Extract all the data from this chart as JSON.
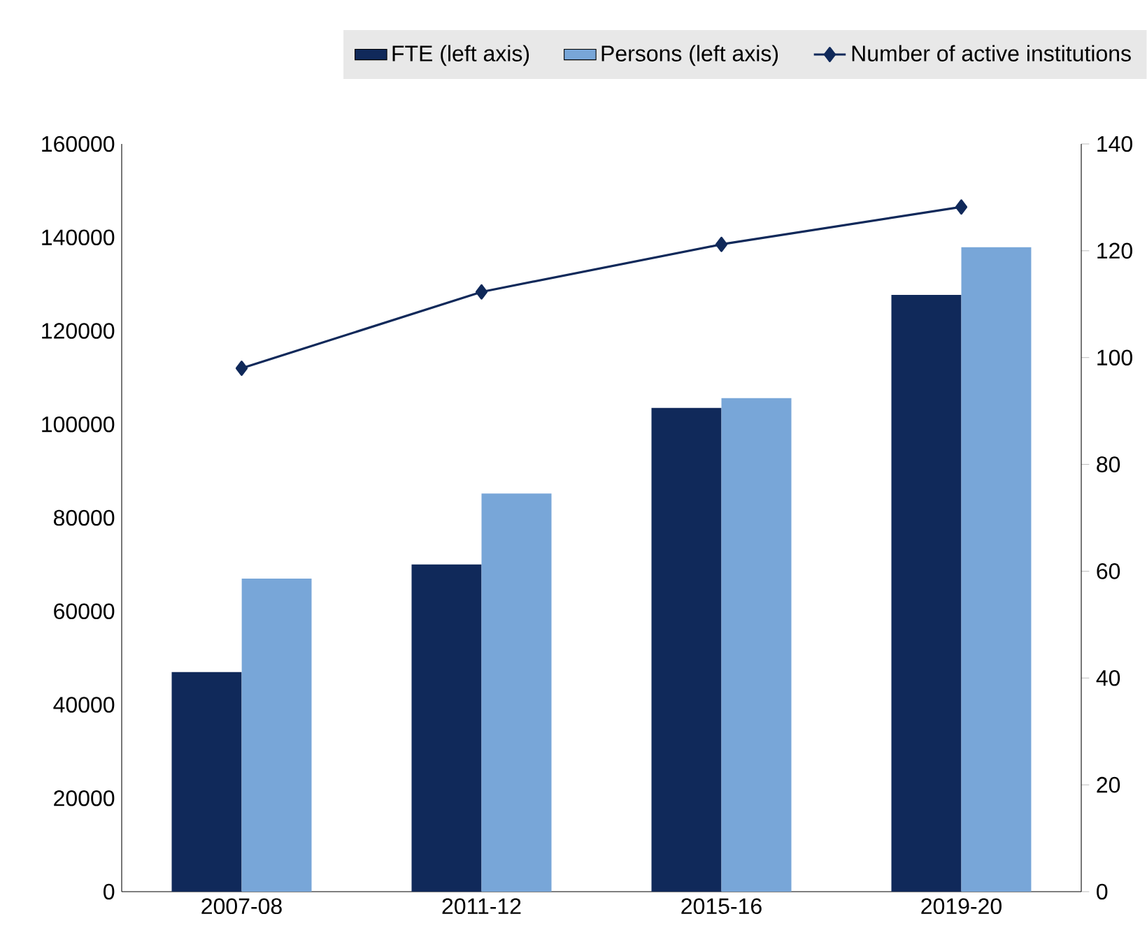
{
  "chart_data": {
    "type": "bar",
    "categories": [
      "2007-08",
      "2011-12",
      "2015-16",
      "2019-20"
    ],
    "series": [
      {
        "name": "FTE (left axis)",
        "color": "#10295a",
        "values": [
          47000,
          70000,
          103500,
          127700
        ]
      },
      {
        "name": "Persons (left axis)",
        "color": "#78a6d8",
        "values": [
          67000,
          85200,
          105600,
          137900
        ]
      },
      {
        "name": "Number of active institutions",
        "type": "line",
        "axis": "y2",
        "color": "#10295a",
        "marker": "diamond",
        "values": [
          98,
          112.3,
          121.2,
          128.2
        ]
      }
    ],
    "ylim": [
      0,
      160000
    ],
    "yticks": [
      0,
      20000,
      40000,
      60000,
      80000,
      100000,
      120000,
      140000,
      160000
    ],
    "y2lim": [
      0,
      140
    ],
    "y2ticks": [
      0,
      20,
      40,
      60,
      80,
      100,
      120,
      140
    ],
    "legend": "top"
  }
}
